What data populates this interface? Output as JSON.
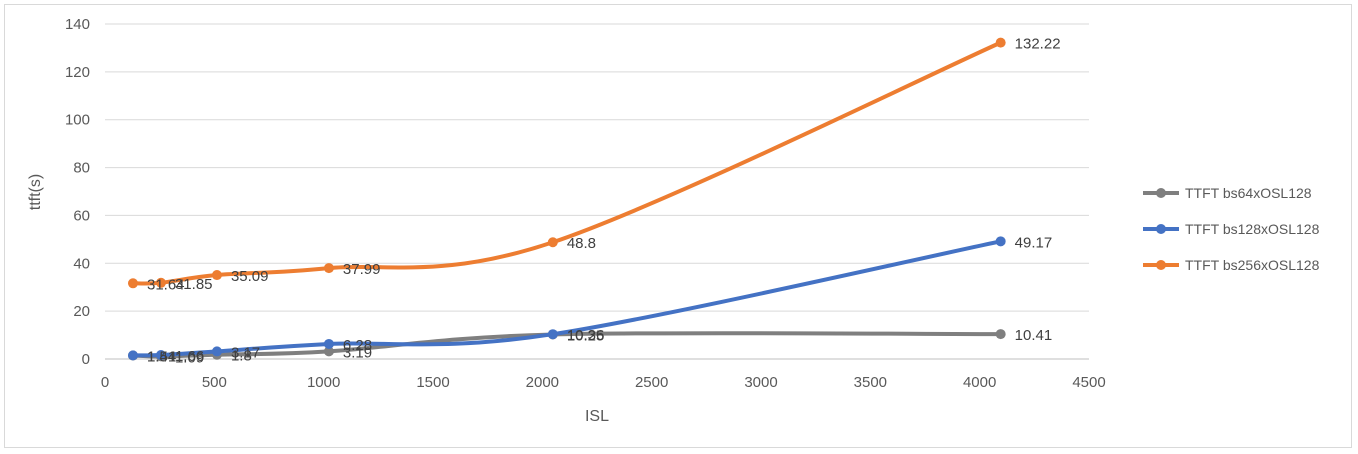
{
  "chart_data": {
    "type": "line",
    "title": "",
    "xlabel": "ISL",
    "ylabel": "ttft(s)",
    "xlim": [
      0,
      4500
    ],
    "ylim": [
      0,
      140
    ],
    "xticks": [
      0,
      500,
      1000,
      1500,
      2000,
      2500,
      3000,
      3500,
      4000,
      4500
    ],
    "yticks": [
      0,
      20,
      40,
      60,
      80,
      100,
      120,
      140
    ],
    "xtick_labels": [
      "0",
      "500",
      "1000",
      "1500",
      "2000",
      "2500",
      "3000",
      "3500",
      "4000",
      "4500"
    ],
    "ytick_labels": [
      "0",
      "20",
      "40",
      "60",
      "80",
      "100",
      "120",
      "140"
    ],
    "grid": "horizontal",
    "legend_position": "right",
    "smooth": true,
    "series": [
      {
        "name": "TTFT bs64xOSL128",
        "color": "#7f7f7f",
        "x": [
          128,
          256,
          512,
          1024,
          2048,
          4096
        ],
        "y": [
          1.44,
          1.09,
          1.8,
          3.19,
          10.25,
          10.41
        ],
        "labels": [
          "1.44",
          "1.09",
          "1.8",
          "3.19",
          "10.25",
          "10.41"
        ]
      },
      {
        "name": "TTFT bs128xOSL128",
        "color": "#4472c4",
        "x": [
          128,
          256,
          512,
          1024,
          2048,
          4096
        ],
        "y": [
          1.51,
          1.66,
          3.17,
          6.28,
          10.36,
          49.17
        ],
        "labels": [
          "1.51",
          "1.66",
          "3.17",
          "6.28",
          "10.36",
          "49.17"
        ]
      },
      {
        "name": "TTFT bs256xOSL128",
        "color": "#ed7d31",
        "x": [
          128,
          256,
          512,
          1024,
          2048,
          4096
        ],
        "y": [
          31.64,
          31.85,
          35.09,
          37.99,
          48.8,
          132.22
        ],
        "labels": [
          "31.64",
          "31.85",
          "35.09",
          "37.99",
          "48.8",
          "132.22"
        ]
      }
    ]
  }
}
